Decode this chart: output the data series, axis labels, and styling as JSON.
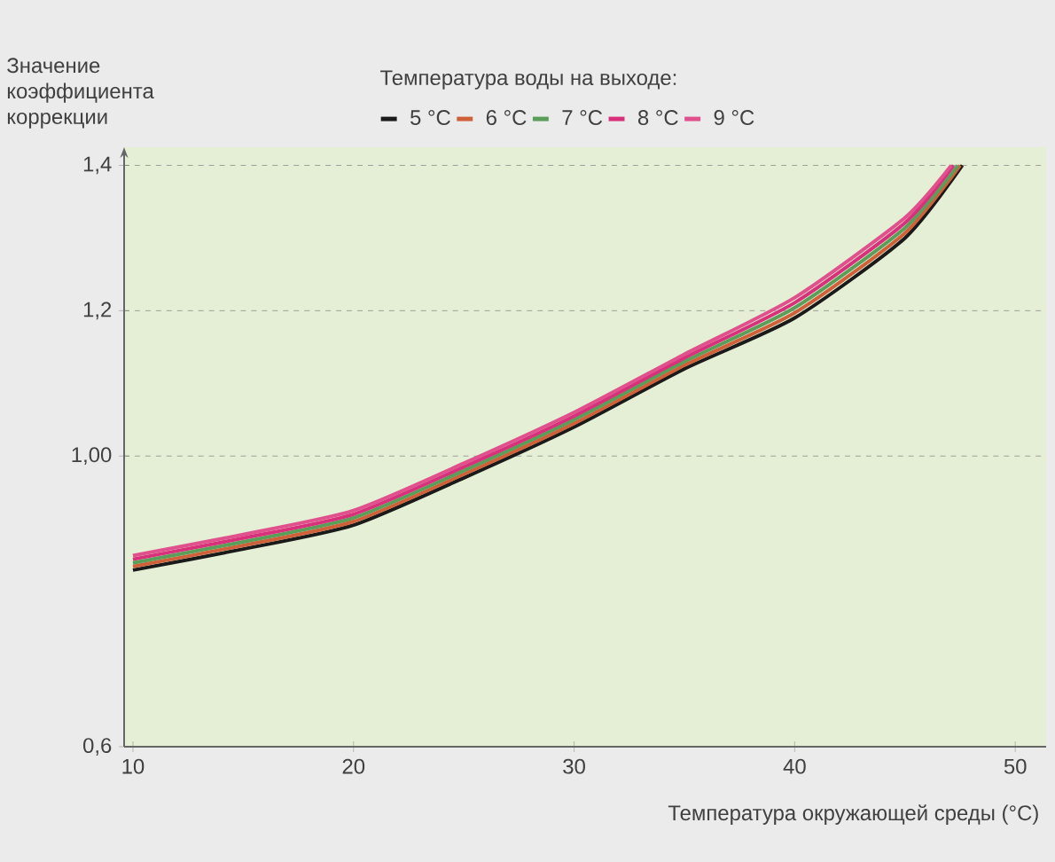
{
  "chart_data": {
    "type": "line",
    "ylabel": "Значение коэффициента коррекции",
    "xlabel": "Температура окружающей среды (°C)",
    "legend_title": "Температура воды на выходе:",
    "legend": "top",
    "grid": "y",
    "line_style": "solid",
    "xlim": [
      9.6,
      51.4
    ],
    "ylim": [
      0.6,
      1.425
    ],
    "xticks": [
      10,
      20,
      30,
      40,
      50
    ],
    "yticks": [
      {
        "value": 0.6,
        "label": "0,6"
      },
      {
        "value": 1.0,
        "label": "1,00"
      },
      {
        "value": 1.2,
        "label": "1,2"
      },
      {
        "value": 1.4,
        "label": "1,4"
      }
    ],
    "series": [
      {
        "name": "5 °C",
        "color": "#1a1a1a",
        "x": [
          10,
          15,
          20,
          25,
          30,
          35,
          40,
          45,
          47.6
        ],
        "values": [
          0.843,
          0.872,
          0.905,
          0.97,
          1.04,
          1.12,
          1.19,
          1.3,
          1.4
        ]
      },
      {
        "name": "6 °C",
        "color": "#d0603a",
        "x": [
          10,
          15,
          20,
          25,
          30,
          35,
          40,
          45,
          47.5
        ],
        "values": [
          0.848,
          0.877,
          0.91,
          0.975,
          1.045,
          1.125,
          1.197,
          1.307,
          1.4
        ]
      },
      {
        "name": "7 °C",
        "color": "#5a9e5a",
        "x": [
          10,
          15,
          20,
          25,
          30,
          35,
          40,
          45,
          47.4
        ],
        "values": [
          0.853,
          0.882,
          0.915,
          0.98,
          1.05,
          1.13,
          1.204,
          1.314,
          1.4
        ]
      },
      {
        "name": "8 °C",
        "color": "#d8307a",
        "x": [
          10,
          15,
          20,
          25,
          30,
          35,
          40,
          45,
          47.2
        ],
        "values": [
          0.858,
          0.887,
          0.92,
          0.985,
          1.055,
          1.135,
          1.211,
          1.321,
          1.4
        ]
      },
      {
        "name": "9 °C",
        "color": "#e0508c",
        "x": [
          10,
          15,
          20,
          25,
          30,
          35,
          40,
          45,
          47.1
        ],
        "values": [
          0.863,
          0.892,
          0.925,
          0.99,
          1.06,
          1.14,
          1.218,
          1.328,
          1.4
        ]
      }
    ]
  }
}
